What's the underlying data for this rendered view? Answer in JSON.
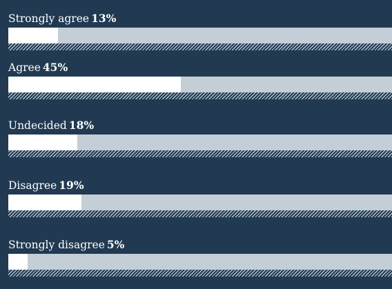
{
  "chart_data": {
    "type": "bar",
    "orientation": "horizontal",
    "categories": [
      "Strongly agree",
      "Agree",
      "Undecided",
      "Disagree",
      "Strongly disagree"
    ],
    "values": [
      13,
      45,
      18,
      19,
      5
    ],
    "value_labels": [
      "13%",
      "45%",
      "18%",
      "19%",
      "5%"
    ],
    "xlim": [
      0,
      100
    ],
    "grid": false,
    "legend": "none"
  },
  "colors": {
    "background": "#213a52",
    "track": "#c3ced7",
    "fill": "#ffffff",
    "hatch": "#b4c1cc",
    "text": "#ffffff"
  }
}
